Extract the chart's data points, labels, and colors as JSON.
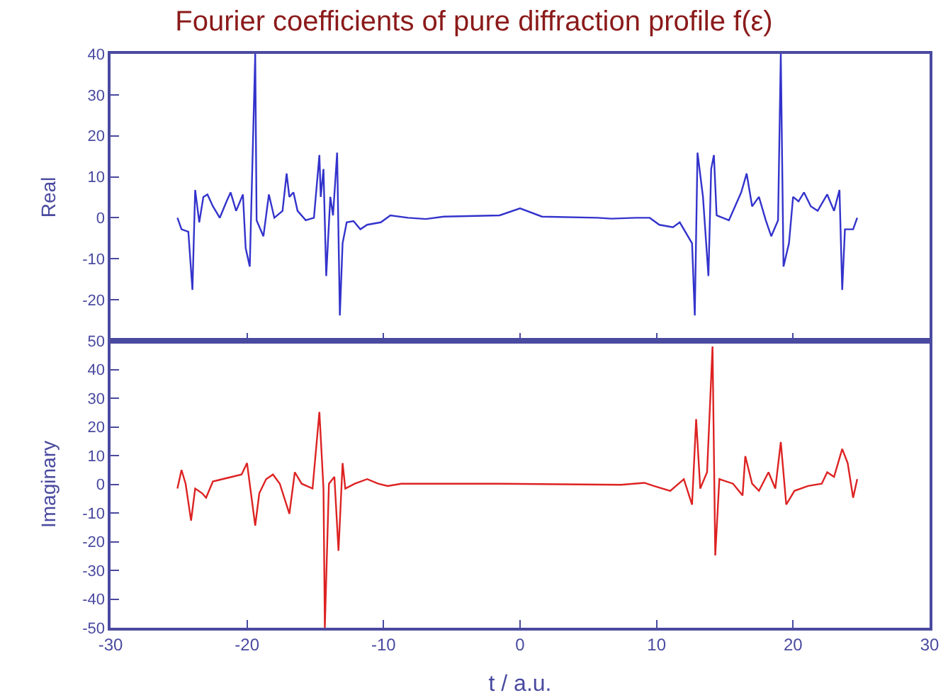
{
  "chart_data": [
    {
      "type": "line",
      "title": "Fourier coefficients of pure diffraction profile f(ε)",
      "ylabel": "Real",
      "tick_labels": "y",
      "grid": false,
      "xlim": [
        -30,
        30
      ],
      "xticks": [
        {
          "value": -30,
          "label": null
        },
        {
          "value": -20,
          "label": null
        },
        {
          "value": -10,
          "label": null
        },
        {
          "value": 0,
          "label": null
        },
        {
          "value": 10,
          "label": null
        },
        {
          "value": 20,
          "label": null
        },
        {
          "value": 30,
          "label": null
        }
      ],
      "ylim": [
        -30,
        40
      ],
      "yticks": [
        {
          "value": -30,
          "label": null
        },
        -20,
        -10,
        0,
        10,
        20,
        30,
        40
      ],
      "series": [
        {
          "color": "#3333cc",
          "x": [
            -25.1,
            -24.8,
            -24.3,
            -24.0,
            -23.8,
            -23.5,
            -23.2,
            -22.9,
            -22.5,
            -22.0,
            -21.5,
            -21.2,
            -20.8,
            -20.3,
            -20.1,
            -19.8,
            -19.4,
            -19.3,
            -18.8,
            -18.4,
            -18.0,
            -17.4,
            -17.1,
            -16.9,
            -16.6,
            -16.3,
            -15.7,
            -15.1,
            -14.7,
            -14.6,
            -14.4,
            -14.2,
            -13.9,
            -13.7,
            -13.4,
            -13.2,
            -13.0,
            -12.7,
            -12.2,
            -11.7,
            -11.2,
            -10.2,
            -9.5,
            -8.2,
            -6.9,
            -5.6,
            -1.5,
            0,
            1.6,
            5.7,
            6.7,
            8.5,
            9.5,
            10.2,
            11.2,
            11.7,
            12.6,
            12.8,
            13.0,
            13.4,
            13.8,
            14.0,
            14.2,
            14.4,
            15.3,
            16.2,
            16.6,
            17.0,
            17.5,
            18.0,
            18.4,
            18.9,
            19.1,
            19.3,
            19.7,
            20.0,
            20.4,
            20.8,
            21.3,
            21.8,
            22.5,
            23.0,
            23.4,
            23.6,
            23.8,
            24.4,
            24.7
          ],
          "values": [
            0,
            -2.8,
            -3.4,
            -17.6,
            6.8,
            -1.1,
            5.1,
            5.7,
            2.8,
            0,
            4.0,
            6.2,
            1.7,
            5.7,
            -7.4,
            -11.9,
            40,
            -0.6,
            -4.5,
            5.7,
            0,
            1.7,
            10.8,
            5.1,
            6.2,
            1.7,
            -0.6,
            0,
            15.3,
            5.1,
            11.9,
            -14.2,
            5.1,
            0.6,
            15.9,
            -23.8,
            -6.2,
            -1.1,
            -0.8,
            -2.8,
            -1.7,
            -1.1,
            0.6,
            0,
            -0.3,
            0.3,
            0.6,
            2.3,
            0.3,
            0,
            -0.2,
            0,
            0,
            -1.7,
            -2.3,
            -1.1,
            -6.2,
            -23.8,
            15.9,
            5.1,
            -14.2,
            11.9,
            15.3,
            0.6,
            -0.6,
            6.2,
            10.8,
            2.8,
            5.1,
            -0.6,
            -4.5,
            -0.6,
            40,
            -11.9,
            -6.2,
            5.1,
            4.0,
            6.2,
            2.8,
            1.7,
            5.7,
            1.7,
            6.8,
            -17.6,
            -2.8,
            -2.8,
            0
          ]
        }
      ]
    },
    {
      "type": "line",
      "xlabel": "t / a.u.",
      "ylabel": "Imaginary",
      "grid": false,
      "xlim": [
        -30,
        30
      ],
      "xticks": [
        -30,
        -20,
        -10,
        0,
        10,
        20,
        30
      ],
      "ylim": [
        -50,
        50
      ],
      "yticks": [
        -50,
        -40,
        -30,
        -20,
        -10,
        0,
        10,
        20,
        30,
        40,
        50
      ],
      "series": [
        {
          "color": "#dd2222",
          "x": [
            -25.1,
            -24.8,
            -24.5,
            -24.1,
            -23.8,
            -23.3,
            -23.0,
            -22.5,
            -21.8,
            -21.1,
            -20.4,
            -20.0,
            -19.4,
            -19.1,
            -18.6,
            -18.1,
            -17.6,
            -16.9,
            -16.5,
            -16.0,
            -15.2,
            -14.7,
            -14.4,
            -14.3,
            -14.0,
            -13.6,
            -13.3,
            -13.0,
            -12.8,
            -12.1,
            -11.2,
            -10.4,
            -9.7,
            -8.7,
            -1.5,
            7.4,
            9.1,
            9.8,
            11.0,
            12.0,
            12.6,
            12.9,
            13.2,
            13.7,
            14.1,
            14.3,
            14.6,
            15.6,
            16.3,
            16.5,
            17.0,
            17.5,
            18.2,
            18.7,
            19.1,
            19.5,
            20.1,
            21.1,
            22.1,
            22.5,
            23.0,
            23.6,
            24.0,
            24.4,
            24.7
          ],
          "values": [
            -1.5,
            5.0,
            0.2,
            -12.7,
            -1.5,
            -3.1,
            -4.7,
            1.0,
            1.8,
            2.6,
            3.4,
            7.4,
            -14.4,
            -3.1,
            1.8,
            3.4,
            0.2,
            -10.3,
            4.2,
            0.2,
            -1.5,
            25.2,
            -1.5,
            -50,
            0.2,
            2.6,
            -23.2,
            7.4,
            -1.5,
            0.2,
            1.8,
            0.2,
            -0.6,
            0.2,
            0.2,
            -0.2,
            0.5,
            -0.6,
            -2.3,
            1.8,
            -7.1,
            22.7,
            -1.5,
            4.2,
            48,
            -24.8,
            1.8,
            0.2,
            -3.9,
            9.8,
            0.2,
            -2.3,
            4.2,
            -1.5,
            14.7,
            -7.1,
            -2.3,
            -0.6,
            0.2,
            4.2,
            2.6,
            12.3,
            7.4,
            -4.7,
            1.8
          ]
        }
      ]
    }
  ]
}
